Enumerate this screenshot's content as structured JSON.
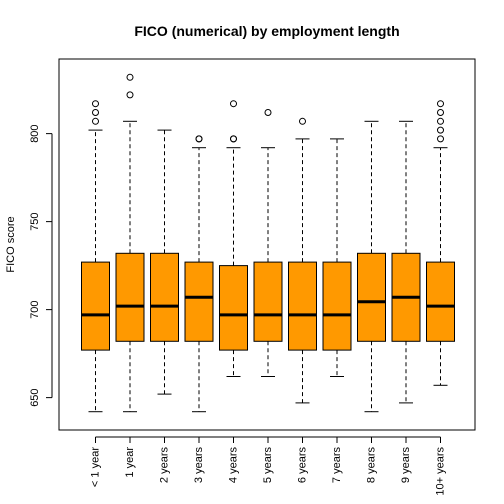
{
  "chart_data": {
    "type": "boxplot",
    "title": "FICO (numerical) by employment length",
    "xlabel": "",
    "ylabel": "FICO score",
    "ylim": [
      637,
      837
    ],
    "yticks": [
      650,
      700,
      750,
      800
    ],
    "box_color": "#FF9900",
    "categories": [
      "< 1 year",
      "1 year",
      "2 years",
      "3 years",
      "4 years",
      "5 years",
      "6 years",
      "7 years",
      "8 years",
      "9 years",
      "10+ years"
    ],
    "boxes": [
      {
        "whisker_low": 642,
        "q1": 677,
        "median": 697,
        "q3": 727,
        "whisker_high": 802,
        "outliers": [
          807,
          812,
          817
        ]
      },
      {
        "whisker_low": 642,
        "q1": 682,
        "median": 702,
        "q3": 732,
        "whisker_high": 807,
        "outliers": [
          822,
          832
        ]
      },
      {
        "whisker_low": 652,
        "q1": 682,
        "median": 702,
        "q3": 732,
        "whisker_high": 802,
        "outliers": []
      },
      {
        "whisker_low": 642,
        "q1": 682,
        "median": 707,
        "q3": 727,
        "whisker_high": 792,
        "outliers": [
          797,
          797
        ]
      },
      {
        "whisker_low": 662,
        "q1": 677,
        "median": 697,
        "q3": 725,
        "whisker_high": 792,
        "outliers": [
          797,
          797,
          817
        ]
      },
      {
        "whisker_low": 662,
        "q1": 682,
        "median": 697,
        "q3": 727,
        "whisker_high": 792,
        "outliers": [
          812
        ]
      },
      {
        "whisker_low": 647,
        "q1": 677,
        "median": 697,
        "q3": 727,
        "whisker_high": 797,
        "outliers": [
          807
        ]
      },
      {
        "whisker_low": 662,
        "q1": 677,
        "median": 697,
        "q3": 727,
        "whisker_high": 797,
        "outliers": []
      },
      {
        "whisker_low": 642,
        "q1": 682,
        "median": 704.5,
        "q3": 732,
        "whisker_high": 807,
        "outliers": []
      },
      {
        "whisker_low": 647,
        "q1": 682,
        "median": 707,
        "q3": 732,
        "whisker_high": 807,
        "outliers": []
      },
      {
        "whisker_low": 657,
        "q1": 682,
        "median": 702,
        "q3": 727,
        "whisker_high": 792,
        "outliers": [
          797,
          802,
          807,
          812,
          817
        ]
      }
    ]
  }
}
